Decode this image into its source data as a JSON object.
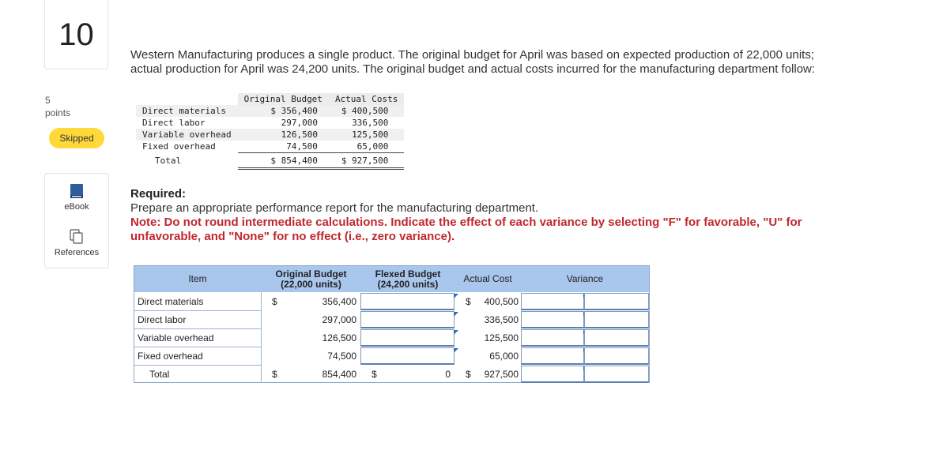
{
  "sidebar": {
    "question_number": "10",
    "points_value": "5",
    "points_label": "points",
    "status": "Skipped",
    "tools": [
      {
        "label": "eBook",
        "icon": "book-icon"
      },
      {
        "label": "References",
        "icon": "references-icon"
      }
    ]
  },
  "question": {
    "intro_line1": "Western Manufacturing produces a single product. The original budget for April was based on expected production of 22,000 units;",
    "intro_line2": "actual production for April was 24,200 units. The original budget and actual costs incurred for the manufacturing department follow:",
    "required_title": "Required:",
    "required_text": "Prepare an appropriate performance report for the manufacturing department.",
    "note_line1": "Note: Do not round intermediate calculations. Indicate the effect of each variance by selecting \"F\" for favorable, \"U\" for",
    "note_line2": "unfavorable, and \"None\" for no effect (i.e., zero variance)."
  },
  "original_table": {
    "headers": [
      "Original Budget",
      "Actual Costs"
    ],
    "rows": [
      {
        "label": "Direct materials",
        "budget": "$ 356,400",
        "actual": "$ 400,500"
      },
      {
        "label": "Direct labor",
        "budget": "297,000",
        "actual": "336,500"
      },
      {
        "label": "Variable overhead",
        "budget": "126,500",
        "actual": "125,500"
      },
      {
        "label": "Fixed overhead",
        "budget": "74,500",
        "actual": "65,000"
      }
    ],
    "total": {
      "label": "Total",
      "budget": "$ 854,400",
      "actual": "$ 927,500"
    }
  },
  "report": {
    "headers": {
      "item": "Item",
      "original_line1": "Original Budget",
      "original_line2": "(22,000 units)",
      "flexed_line1": "Flexed Budget",
      "flexed_line2": "(24,200 units)",
      "actual": "Actual Cost",
      "variance": "Variance"
    },
    "rows": [
      {
        "label": "Direct materials",
        "orig_dollar": "$",
        "original": "356,400",
        "flexed": "",
        "actual_dollar": "$",
        "actual": "400,500",
        "variance": "",
        "effect": ""
      },
      {
        "label": "Direct labor",
        "orig_dollar": "",
        "original": "297,000",
        "flexed": "",
        "actual_dollar": "",
        "actual": "336,500",
        "variance": "",
        "effect": ""
      },
      {
        "label": "Variable overhead",
        "orig_dollar": "",
        "original": "126,500",
        "flexed": "",
        "actual_dollar": "",
        "actual": "125,500",
        "variance": "",
        "effect": ""
      },
      {
        "label": "Fixed overhead",
        "orig_dollar": "",
        "original": "74,500",
        "flexed": "",
        "actual_dollar": "",
        "actual": "65,000",
        "variance": "",
        "effect": ""
      }
    ],
    "total": {
      "label": "Total",
      "orig_dollar": "$",
      "original": "854,400",
      "flexed_dollar": "$",
      "flexed": "0",
      "actual_dollar": "$",
      "actual": "927,500",
      "variance": "",
      "effect": ""
    }
  },
  "colors": {
    "header_bg": "#a9c6ec",
    "note_red": "#c0272d",
    "skipped_badge": "#ffd83a",
    "input_flag": "#2f6db5"
  }
}
